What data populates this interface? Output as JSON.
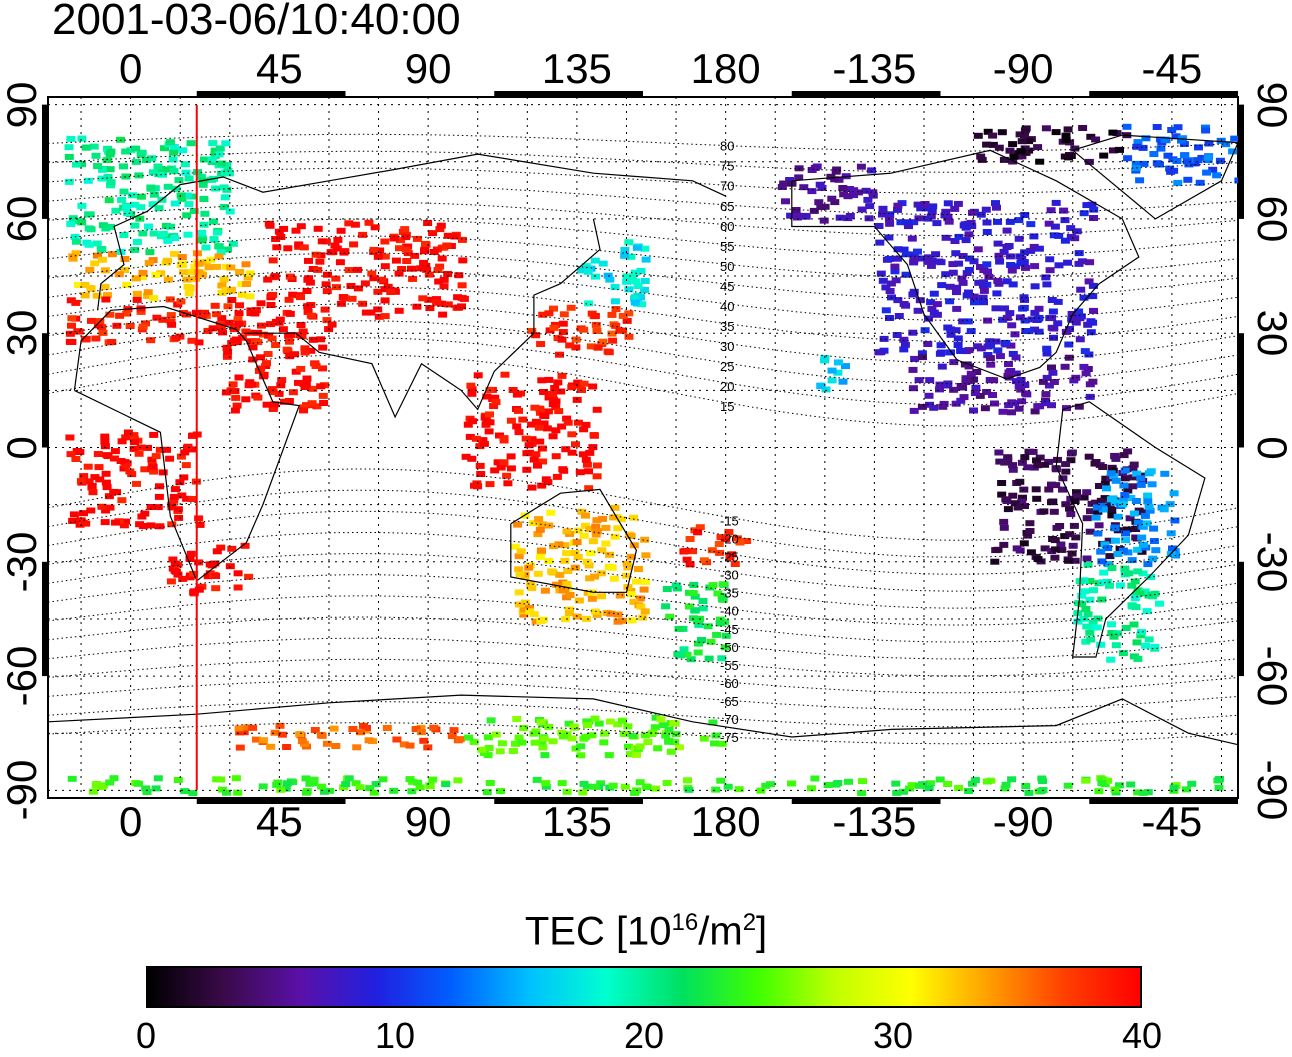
{
  "timestamp": "2001-03-06/10:40:00",
  "lon_ticks": [
    "0",
    "45",
    "90",
    "135",
    "180",
    "-135",
    "-90",
    "-45"
  ],
  "lon_tick_values": [
    0,
    45,
    90,
    135,
    180,
    225,
    270,
    315
  ],
  "lat_ticks_left": [
    "90",
    "60",
    "30",
    "0",
    "-30",
    "-60",
    "-90"
  ],
  "lat_ticks_right": [
    "90",
    "60",
    "30",
    "0",
    "-30",
    "-60",
    "-90"
  ],
  "lat_tick_values": [
    90,
    60,
    30,
    0,
    -30,
    -60,
    -90
  ],
  "map_extent": {
    "lon": [
      -25,
      335
    ],
    "lat": [
      -92,
      92
    ]
  },
  "contour_labels": [
    "80",
    "75",
    "70",
    "65",
    "60",
    "55",
    "50",
    "45",
    "40",
    "35",
    "30",
    "25",
    "20",
    "15",
    "-15",
    "-20",
    "-25",
    "-30",
    "-35",
    "-40",
    "-45",
    "-50",
    "-55",
    "-60",
    "-65",
    "-70",
    "-75"
  ],
  "contour_values": [
    80,
    75,
    70,
    65,
    60,
    55,
    50,
    45,
    40,
    35,
    30,
    25,
    20,
    15,
    -15,
    -20,
    -25,
    -30,
    -35,
    -40,
    -45,
    -50,
    -55,
    -60,
    -65,
    -70,
    -75
  ],
  "subsolar_meridian_lon": 20,
  "colorbar": {
    "title_main": "TEC  [10",
    "title_sup1": "16",
    "title_mid": "/m",
    "title_sup2": "2",
    "title_end": "]",
    "tick_labels": [
      "0",
      "10",
      "20",
      "30",
      "40"
    ],
    "min": 0,
    "max": 40,
    "colors": [
      "#000000",
      "#3a0a4a",
      "#5a10a8",
      "#2020e0",
      "#0060ff",
      "#00c0ff",
      "#00ffd0",
      "#00e060",
      "#40ff00",
      "#c0ff00",
      "#ffff00",
      "#ffa000",
      "#ff4000",
      "#ff0000"
    ]
  },
  "colors": {
    "subsolar_line": "#ff0000"
  },
  "tec_regions": [
    {
      "lon": [
        -20,
        30
      ],
      "lat": [
        52,
        82
      ],
      "tec": 20
    },
    {
      "lon": [
        -20,
        35
      ],
      "lat": [
        40,
        52
      ],
      "tec": 33
    },
    {
      "lon": [
        -20,
        40
      ],
      "lat": [
        28,
        40
      ],
      "tec": 39
    },
    {
      "lon": [
        40,
        100
      ],
      "lat": [
        35,
        60
      ],
      "tec": 40
    },
    {
      "lon": [
        120,
        150
      ],
      "lat": [
        25,
        38
      ],
      "tec": 38
    },
    {
      "lon": [
        135,
        155
      ],
      "lat": [
        38,
        55
      ],
      "tec": 17
    },
    {
      "lon": [
        25,
        60
      ],
      "lat": [
        10,
        35
      ],
      "tec": 40
    },
    {
      "lon": [
        100,
        140
      ],
      "lat": [
        -10,
        20
      ],
      "tec": 40
    },
    {
      "lon": [
        10,
        35
      ],
      "lat": [
        -38,
        -25
      ],
      "tec": 40
    },
    {
      "lon": [
        -20,
        20
      ],
      "lat": [
        -20,
        5
      ],
      "tec": 40
    },
    {
      "lon": [
        115,
        155
      ],
      "lat": [
        -45,
        -15
      ],
      "tec": 33
    },
    {
      "lon": [
        160,
        180
      ],
      "lat": [
        -55,
        -35
      ],
      "tec": 22
    },
    {
      "lon": [
        165,
        185
      ],
      "lat": [
        -30,
        -20
      ],
      "tec": 38
    },
    {
      "lon": [
        195,
        225
      ],
      "lat": [
        60,
        75
      ],
      "tec": 6
    },
    {
      "lon": [
        225,
        290
      ],
      "lat": [
        25,
        65
      ],
      "tec": 8
    },
    {
      "lon": [
        235,
        290
      ],
      "lat": [
        10,
        25
      ],
      "tec": 6
    },
    {
      "lon": [
        260,
        305
      ],
      "lat": [
        -30,
        0
      ],
      "tec": 3
    },
    {
      "lon": [
        290,
        315
      ],
      "lat": [
        -30,
        -5
      ],
      "tec": 14
    },
    {
      "lon": [
        285,
        310
      ],
      "lat": [
        -55,
        -30
      ],
      "tec": 20
    },
    {
      "lon": [
        205,
        215
      ],
      "lat": [
        15,
        25
      ],
      "tec": 16
    },
    {
      "lon": [
        255,
        300
      ],
      "lat": [
        75,
        85
      ],
      "tec": 2
    },
    {
      "lon": [
        300,
        335
      ],
      "lat": [
        70,
        85
      ],
      "tec": 12
    },
    {
      "lon": [
        30,
        100
      ],
      "lat": [
        -78,
        -72
      ],
      "tec": 36
    },
    {
      "lon": [
        100,
        180
      ],
      "lat": [
        -80,
        -70
      ],
      "tec": 25
    },
    {
      "lon": [
        -20,
        330
      ],
      "lat": [
        -90,
        -86
      ],
      "tec": 24
    }
  ]
}
